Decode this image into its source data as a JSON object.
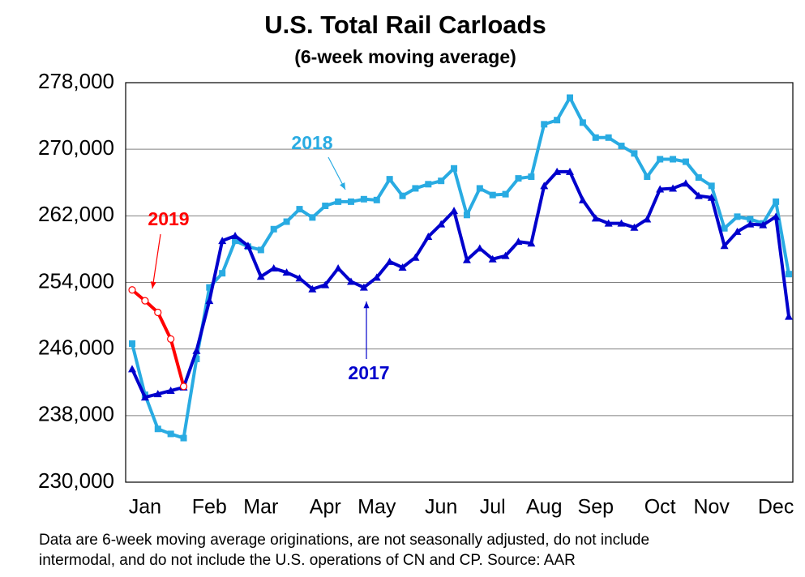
{
  "chart_data": {
    "type": "line",
    "title": "U.S. Total Rail Carloads",
    "subtitle": "(6-week moving average)",
    "categories": [
      null,
      "Jan",
      null,
      null,
      null,
      null,
      "Feb",
      null,
      null,
      null,
      "Mar",
      null,
      null,
      null,
      null,
      "Apr",
      null,
      null,
      null,
      "May",
      null,
      null,
      null,
      null,
      "Jun",
      null,
      null,
      null,
      "Jul",
      null,
      null,
      null,
      "Aug",
      null,
      null,
      null,
      "Sep",
      null,
      null,
      null,
      null,
      "Oct",
      null,
      null,
      null,
      "Nov",
      null,
      null,
      null,
      null,
      "Dec",
      null
    ],
    "series": [
      {
        "name": "2018",
        "color": "#29abe2",
        "marker": "square",
        "values": [
          246650,
          240500,
          236400,
          235800,
          235300,
          244800,
          253400,
          255100,
          259000,
          258300,
          257900,
          260400,
          261300,
          262800,
          261800,
          263200,
          263700,
          263700,
          264000,
          263900,
          266400,
          264400,
          265300,
          265800,
          266200,
          267700,
          262100,
          265300,
          264500,
          264600,
          266500,
          266700,
          273000,
          273500,
          276200,
          273200,
          271400,
          271400,
          270400,
          269500,
          266700,
          268800,
          268800,
          268500,
          266600,
          265600,
          260500,
          261900,
          261600,
          261100,
          263700,
          255000
        ]
      },
      {
        "name": "2017",
        "color": "#0000cc",
        "marker": "triangle",
        "values": [
          243600,
          240200,
          240600,
          241000,
          241400,
          245800,
          251800,
          259000,
          259600,
          258400,
          254700,
          255700,
          255200,
          254500,
          253200,
          253700,
          255700,
          254100,
          253400,
          254600,
          256500,
          255800,
          257000,
          259500,
          261000,
          262600,
          256700,
          258100,
          256800,
          257200,
          258900,
          258700,
          265600,
          267300,
          267300,
          263900,
          261700,
          261100,
          261100,
          260600,
          261600,
          265200,
          265300,
          265900,
          264400,
          264200,
          258400,
          260100,
          261000,
          260900,
          261900,
          249900
        ]
      },
      {
        "name": "2019",
        "color": "#ff0000",
        "marker": "circle",
        "values": [
          253100,
          251800,
          250400,
          247200,
          241500,
          null,
          null,
          null,
          null,
          null,
          null,
          null,
          null,
          null,
          null,
          null,
          null,
          null,
          null,
          null,
          null,
          null,
          null,
          null,
          null,
          null,
          null,
          null,
          null,
          null,
          null,
          null,
          null,
          null,
          null,
          null,
          null,
          null,
          null,
          null,
          null,
          null,
          null,
          null,
          null,
          null,
          null,
          null,
          null,
          null,
          null,
          null
        ]
      }
    ],
    "ylim": [
      230000,
      278000
    ],
    "yticks": [
      {
        "value": 230000,
        "label": "230,000"
      },
      {
        "value": 238000,
        "label": "238,000"
      },
      {
        "value": 246000,
        "label": "246,000"
      },
      {
        "value": 254000,
        "label": "254,000"
      },
      {
        "value": 262000,
        "label": "262,000"
      },
      {
        "value": 270000,
        "label": "270,000"
      },
      {
        "value": 278000,
        "label": "278,000"
      }
    ],
    "grid": true,
    "note": [
      "Data are 6-week moving average originations, are not seasonally adjusted, do not include",
      "intermodal, and do not include the U.S. operations of CN and CP.   Source: AAR"
    ]
  }
}
